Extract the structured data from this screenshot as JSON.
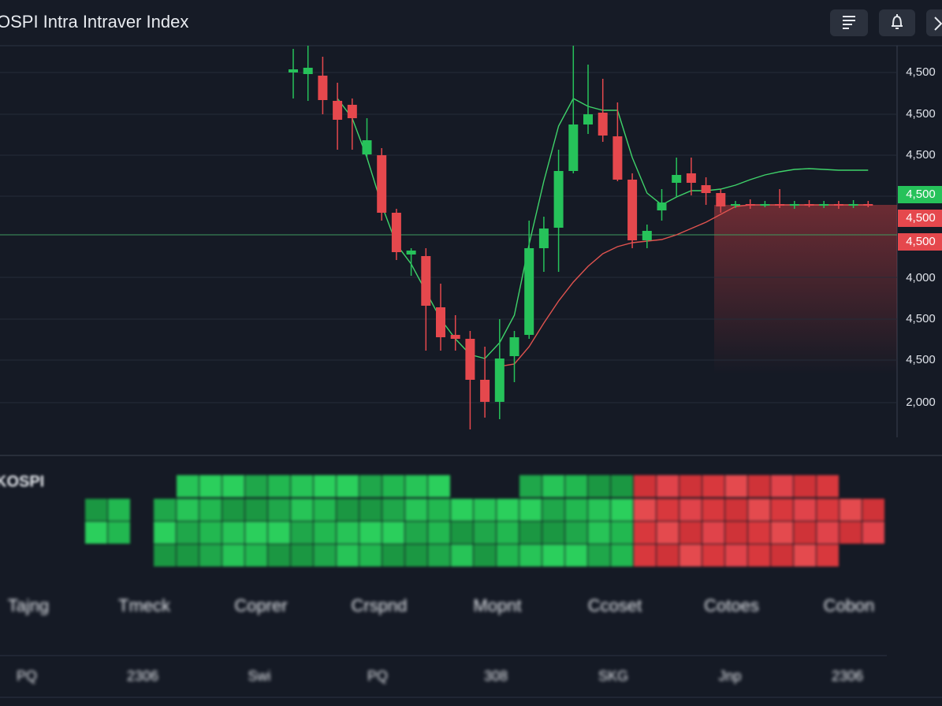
{
  "header": {
    "title": "OSPI Intra Intraver Index"
  },
  "chart_data": {
    "type": "candlestick",
    "ylim": [
      0,
      497
    ],
    "y_labels": [
      "4,500",
      "4,500",
      "4,500",
      "4,000",
      "4,500",
      "4,500",
      "2,000"
    ],
    "price_tags": [
      {
        "label": "4,500",
        "color": "#26c25a"
      },
      {
        "label": "4,500",
        "color": "#e5484d"
      },
      {
        "label": "4,500",
        "color": "#e5484d"
      }
    ],
    "level": 257,
    "up_color": "#26c25a",
    "down_color": "#e5484d",
    "open": [
      463,
      461,
      459,
      427,
      422,
      359,
      358,
      285,
      232,
      230,
      165,
      130,
      125,
      73,
      45,
      103,
      130,
      240,
      266,
      338,
      397,
      412,
      382,
      327,
      250,
      288,
      323,
      335,
      320,
      310,
      295,
      296,
      295,
      296,
      295,
      296,
      295,
      296,
      295,
      296
    ],
    "close": [
      467,
      469,
      428,
      403,
      405,
      377,
      285,
      235,
      237,
      167,
      127,
      125,
      73,
      45,
      100,
      127,
      240,
      265,
      338,
      397,
      410,
      383,
      327,
      250,
      262,
      298,
      333,
      323,
      310,
      293,
      296,
      295,
      296,
      295,
      296,
      295,
      296,
      295,
      296,
      295
    ],
    "high": [
      493,
      497,
      483,
      450,
      430,
      405,
      367,
      290,
      240,
      240,
      195,
      155,
      135,
      115,
      150,
      135,
      275,
      280,
      365,
      497,
      473,
      455,
      425,
      335,
      270,
      315,
      355,
      355,
      330,
      315,
      300,
      302,
      300,
      315,
      300,
      301,
      300,
      300,
      301,
      300
    ],
    "low": [
      430,
      427,
      410,
      365,
      365,
      355,
      275,
      225,
      205,
      110,
      110,
      110,
      10,
      25,
      23,
      70,
      125,
      210,
      210,
      335,
      385,
      375,
      325,
      240,
      240,
      275,
      305,
      307,
      295,
      285,
      291,
      290,
      292,
      291,
      290,
      292,
      291,
      290,
      291,
      292
    ],
    "series": [
      {
        "color": "#3fd36a",
        "values": [
          null,
          null,
          null,
          430,
          405,
          355,
          295,
          245,
          220,
          185,
          150,
          125,
          105,
          100,
          120,
          155,
          245,
          325,
          395,
          430,
          420,
          415,
          415,
          355,
          310,
          295,
          305,
          313,
          313,
          315,
          320,
          327,
          333,
          337,
          340,
          341,
          340,
          339,
          339,
          339
        ]
      },
      {
        "color": "#e0534f",
        "values": [
          null,
          null,
          null,
          null,
          null,
          null,
          null,
          null,
          null,
          null,
          null,
          null,
          null,
          null,
          90,
          93,
          115,
          145,
          173,
          197,
          217,
          233,
          242,
          247,
          249,
          251,
          257,
          265,
          273,
          283,
          293,
          295,
          295,
          295,
          295,
          295,
          295,
          295,
          295,
          295
        ]
      }
    ]
  },
  "heatmap": {
    "label": "KOSPI"
  },
  "footer": {
    "row1": [
      "Tajng",
      "Tmeck",
      "Coprer",
      "Crspnd",
      "Mopnt",
      "Ccoset",
      "Cotoes",
      "Cobon"
    ],
    "row2": [
      "PQ",
      "2306",
      "Swi",
      "PQ",
      "308",
      "SKG",
      "Jnp",
      "2306"
    ]
  }
}
